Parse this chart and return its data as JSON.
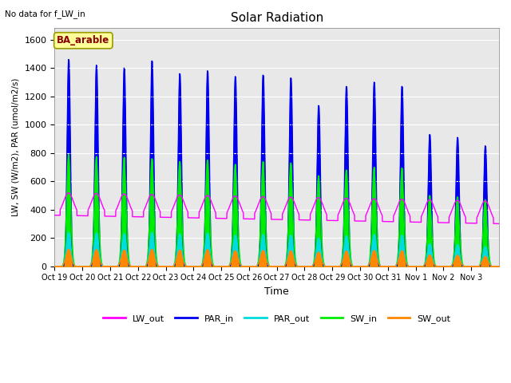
{
  "title": "Solar Radiation",
  "note": "No data for f_LW_in",
  "ylabel": "LW, SW (W/m2), PAR (umol/m2/s)",
  "xlabel": "Time",
  "site_label": "BA_arable",
  "ylim": [
    0,
    1680
  ],
  "yticks": [
    0,
    200,
    400,
    600,
    800,
    1000,
    1200,
    1400,
    1600
  ],
  "x_tick_labels": [
    "Oct 19",
    "Oct 20",
    "Oct 21",
    "Oct 22",
    "Oct 23",
    "Oct 24",
    "Oct 25",
    "Oct 26",
    "Oct 27",
    "Oct 28",
    "Oct 29",
    "Oct 30",
    "Oct 31",
    "Nov 1",
    "Nov 2",
    "Nov 3"
  ],
  "n_days": 16,
  "PAR_in_peaks": [
    1460,
    1420,
    1400,
    1450,
    1360,
    1380,
    1340,
    1350,
    1330,
    1135,
    1270,
    1300,
    1270,
    930,
    910,
    850
  ],
  "SW_in_peaks": [
    790,
    775,
    770,
    760,
    740,
    750,
    720,
    740,
    730,
    640,
    680,
    700,
    695,
    500,
    490,
    470
  ],
  "PAR_out_peaks": [
    240,
    235,
    230,
    240,
    230,
    235,
    220,
    225,
    220,
    200,
    215,
    225,
    220,
    160,
    155,
    140
  ],
  "SW_out_peaks": [
    120,
    118,
    115,
    120,
    115,
    118,
    110,
    112,
    110,
    100,
    108,
    112,
    110,
    80,
    78,
    70
  ],
  "LW_out_base": 340,
  "LW_out_daytime_peak": 500,
  "colors": {
    "LW_out": "#FF00FF",
    "PAR_in": "#0000EE",
    "PAR_out": "#00DDDD",
    "SW_in": "#00EE00",
    "SW_out": "#FF8800",
    "background": "#E8E8E8"
  },
  "legend_labels": [
    "LW_out",
    "PAR_in",
    "PAR_out",
    "SW_in",
    "SW_out"
  ]
}
